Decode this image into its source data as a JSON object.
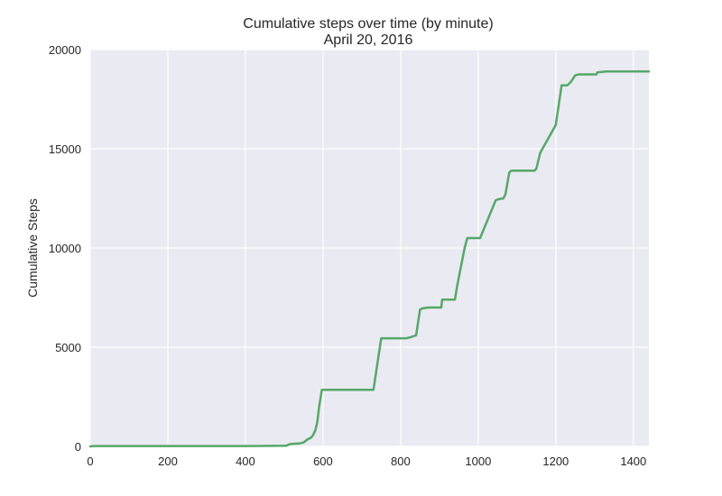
{
  "chart_data": {
    "type": "line",
    "title": "Cumulative steps over time (by minute)",
    "subtitle": "April 20, 2016",
    "xlabel": "",
    "ylabel": "Cumulative Steps",
    "xlim": [
      0,
      1440
    ],
    "ylim": [
      0,
      20000
    ],
    "x_ticks": [
      0,
      200,
      400,
      600,
      800,
      1000,
      1200,
      1400
    ],
    "y_ticks": [
      0,
      5000,
      10000,
      15000,
      20000
    ],
    "x_tick_labels": [
      "0",
      "200",
      "400",
      "600",
      "800",
      "1000",
      "1200",
      "1400"
    ],
    "y_tick_labels": [
      "0",
      "5000",
      "10000",
      "15000",
      "20000"
    ],
    "grid": true,
    "colors": {
      "background": "#eaeaf2",
      "grid": "#ffffff",
      "line": "#55a868",
      "text": "#262626"
    },
    "series": [
      {
        "x": [
          0,
          10,
          200,
          400,
          505,
          515,
          540,
          550,
          560,
          570,
          575,
          580,
          585,
          590,
          597,
          730,
          750,
          815,
          825,
          840,
          850,
          855,
          870,
          905,
          907,
          940,
          945,
          965,
          972,
          1005,
          1045,
          1050,
          1065,
          1070,
          1080,
          1085,
          1145,
          1150,
          1160,
          1200,
          1215,
          1230,
          1240,
          1250,
          1260,
          1305,
          1307,
          1330,
          1440
        ],
        "y": [
          0,
          20,
          20,
          20,
          30,
          120,
          150,
          200,
          350,
          450,
          600,
          800,
          1200,
          2000,
          2850,
          2850,
          5450,
          5450,
          5500,
          5600,
          6900,
          6950,
          7000,
          7000,
          7400,
          7400,
          8000,
          10000,
          10500,
          10500,
          12400,
          12450,
          12500,
          12700,
          13800,
          13900,
          13900,
          14000,
          14800,
          16200,
          18200,
          18200,
          18400,
          18700,
          18750,
          18750,
          18850,
          18900,
          18900
        ]
      }
    ]
  }
}
